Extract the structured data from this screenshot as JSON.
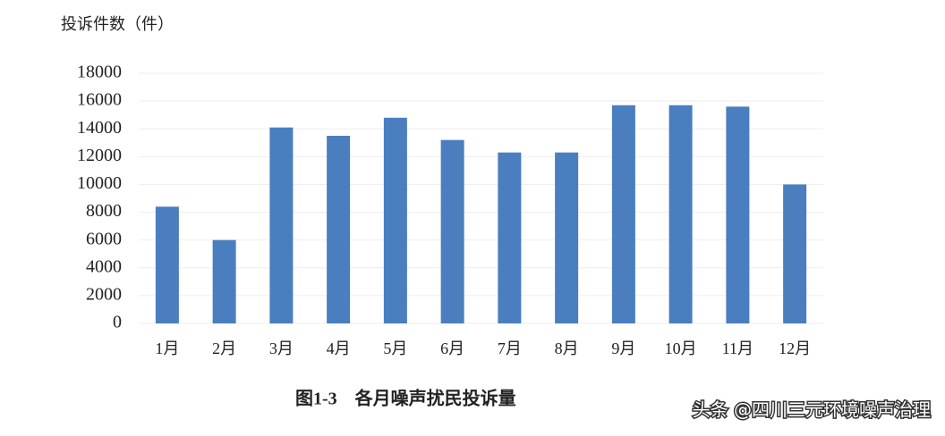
{
  "chart_data": {
    "type": "bar",
    "y_axis_label": "投诉件数（件）",
    "categories": [
      "1月",
      "2月",
      "3月",
      "4月",
      "5月",
      "6月",
      "7月",
      "8月",
      "9月",
      "10月",
      "11月",
      "12月"
    ],
    "values": [
      8400,
      6000,
      14100,
      13500,
      14800,
      13200,
      12300,
      12300,
      15700,
      15700,
      15600,
      10000
    ],
    "color": "#4a7ebf",
    "ylim": [
      0,
      18000
    ],
    "yticks": [
      0,
      2000,
      4000,
      6000,
      8000,
      10000,
      12000,
      14000,
      16000,
      18000
    ],
    "grid": true
  },
  "caption": "图1-3　各月噪声扰民投诉量",
  "watermark": "头条 @四川三元环境噪声治理"
}
